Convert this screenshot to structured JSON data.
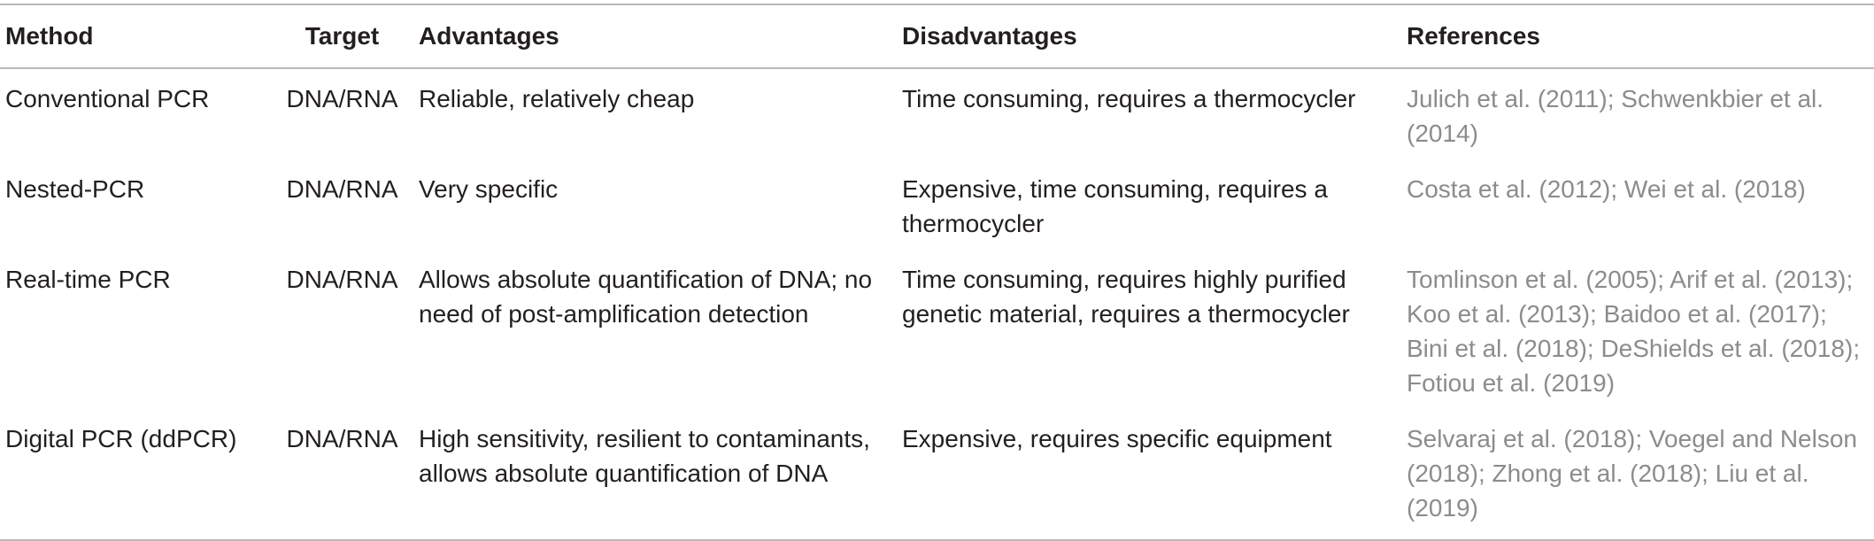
{
  "table": {
    "headers": {
      "method": "Method",
      "target": "Target",
      "advantages": "Advantages",
      "disadvantages": "Disadvantages",
      "references": "References"
    },
    "rows": [
      {
        "method": "Conventional PCR",
        "target": "DNA/RNA",
        "advantages": "Reliable, relatively cheap",
        "disadvantages": "Time consuming, requires a thermocycler",
        "references": "Julich et al. (2011); Schwenkbier et al. (2014)"
      },
      {
        "method": "Nested-PCR",
        "target": "DNA/RNA",
        "advantages": "Very specific",
        "disadvantages": "Expensive, time consuming, requires a thermocycler",
        "references": "Costa et al. (2012); Wei et al. (2018)"
      },
      {
        "method": "Real-time PCR",
        "target": "DNA/RNA",
        "advantages": "Allows absolute quantification of DNA; no need of post-amplification detection",
        "disadvantages": "Time consuming, requires highly purified genetic material, requires a thermocycler",
        "references": "Tomlinson et al. (2005); Arif et al. (2013); Koo et al. (2013); Baidoo et al. (2017); Bini et al. (2018); DeShields et al. (2018); Fotiou et al. (2019)"
      },
      {
        "method": "Digital PCR (ddPCR)",
        "target": "DNA/RNA",
        "advantages": "High sensitivity, resilient to contaminants, allows absolute quantification of DNA",
        "disadvantages": "Expensive, requires specific equipment",
        "references": "Selvaraj et al. (2018); Voegel and Nelson (2018); Zhong et al. (2018); Liu et al. (2019)"
      }
    ]
  }
}
